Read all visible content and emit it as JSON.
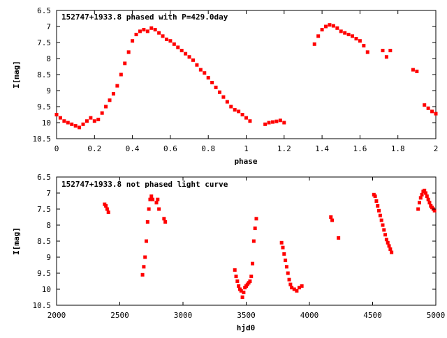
{
  "colors": {
    "series": "#ff0000",
    "axis": "#000000",
    "background": "#ffffff"
  },
  "chart_data": [
    {
      "type": "scatter",
      "title": "152747+1933.8 phased with P=429.0day",
      "xlabel": "phase",
      "ylabel": "I[mag]",
      "xlim": [
        0,
        2
      ],
      "ylim": [
        6.5,
        10.5
      ],
      "y_inverted": true,
      "grid": false,
      "x_ticks": [
        "0",
        "0.2",
        "0.4",
        "0.6",
        "0.8",
        "1",
        "1.2",
        "1.4",
        "1.6",
        "1.8",
        "2"
      ],
      "y_ticks": [
        "6.5",
        "7",
        "7.5",
        "8",
        "8.5",
        "9",
        "9.5",
        "10",
        "10.5"
      ],
      "series": [
        {
          "x": [
            0.0,
            0.02,
            0.04,
            0.06,
            0.08,
            0.1,
            0.12,
            0.14,
            0.16,
            0.18,
            0.2,
            0.22,
            0.24,
            0.26,
            0.28,
            0.3,
            0.32,
            0.34,
            0.36,
            0.38,
            0.4,
            0.42,
            0.44,
            0.46,
            0.48,
            0.5,
            0.52,
            0.54,
            0.56,
            0.58,
            0.6,
            0.62,
            0.64,
            0.66,
            0.68,
            0.7,
            0.72,
            0.74,
            0.76,
            0.78,
            0.8,
            0.82,
            0.84,
            0.86,
            0.88,
            0.9,
            0.92,
            0.94,
            0.96,
            0.98,
            1.0,
            1.02,
            1.1,
            1.12,
            1.14,
            1.16,
            1.18,
            1.2,
            1.36,
            1.38,
            1.4,
            1.42,
            1.44,
            1.46,
            1.48,
            1.5,
            1.52,
            1.54,
            1.56,
            1.58,
            1.6,
            1.62,
            1.64,
            1.72,
            1.74,
            1.76,
            1.88,
            1.9,
            1.94,
            1.96,
            1.98,
            2.0
          ],
          "y": [
            9.75,
            9.85,
            9.95,
            10.0,
            10.05,
            10.1,
            10.15,
            10.05,
            9.95,
            9.85,
            9.95,
            9.9,
            9.7,
            9.5,
            9.3,
            9.1,
            8.85,
            8.5,
            8.15,
            7.8,
            7.45,
            7.25,
            7.15,
            7.1,
            7.15,
            7.05,
            7.1,
            7.2,
            7.3,
            7.4,
            7.45,
            7.55,
            7.65,
            7.75,
            7.85,
            7.95,
            8.05,
            8.2,
            8.35,
            8.45,
            8.6,
            8.75,
            8.9,
            9.05,
            9.2,
            9.35,
            9.5,
            9.6,
            9.65,
            9.75,
            9.85,
            9.95,
            10.05,
            10.0,
            9.98,
            9.96,
            9.93,
            10.0,
            7.55,
            7.3,
            7.1,
            7.0,
            6.95,
            6.98,
            7.05,
            7.15,
            7.2,
            7.25,
            7.3,
            7.38,
            7.45,
            7.6,
            7.8,
            7.75,
            7.95,
            7.75,
            8.35,
            8.4,
            9.45,
            9.55,
            9.65,
            9.72
          ]
        }
      ]
    },
    {
      "type": "scatter",
      "title": "152747+1933.8 not phased light curve",
      "xlabel": "hjd0",
      "ylabel": "I[mag]",
      "xlim": [
        2000,
        5000
      ],
      "ylim": [
        6.5,
        10.5
      ],
      "y_inverted": true,
      "grid": false,
      "x_ticks": [
        "2000",
        "2500",
        "3000",
        "3500",
        "4000",
        "4500",
        "5000"
      ],
      "y_ticks": [
        "6.5",
        "7",
        "7.5",
        "8",
        "8.5",
        "9",
        "9.5",
        "10",
        "10.5"
      ],
      "series": [
        {
          "x": [
            2380,
            2390,
            2400,
            2410,
            2680,
            2690,
            2700,
            2710,
            2720,
            2730,
            2740,
            2750,
            2760,
            2790,
            2800,
            2810,
            2850,
            2860,
            3410,
            3420,
            3430,
            3440,
            3450,
            3460,
            3470,
            3480,
            3490,
            3500,
            3510,
            3520,
            3530,
            3540,
            3550,
            3560,
            3570,
            3580,
            3780,
            3790,
            3800,
            3810,
            3820,
            3830,
            3840,
            3850,
            3860,
            3880,
            3900,
            3920,
            3940,
            4170,
            4180,
            4230,
            4510,
            4520,
            4530,
            4540,
            4550,
            4560,
            4570,
            4580,
            4590,
            4600,
            4610,
            4620,
            4630,
            4640,
            4650,
            4860,
            4870,
            4880,
            4890,
            4900,
            4910,
            4920,
            4930,
            4940,
            4950,
            4960,
            4970,
            4980,
            4990
          ],
          "y": [
            7.35,
            7.4,
            7.5,
            7.6,
            9.55,
            9.3,
            9.0,
            8.5,
            7.9,
            7.5,
            7.2,
            7.1,
            7.2,
            7.3,
            7.2,
            7.5,
            7.8,
            7.9,
            9.4,
            9.6,
            9.75,
            9.9,
            10.0,
            10.05,
            10.25,
            10.1,
            9.95,
            9.9,
            9.85,
            9.8,
            9.75,
            9.6,
            9.2,
            8.5,
            8.1,
            7.8,
            8.55,
            8.7,
            8.9,
            9.1,
            9.3,
            9.5,
            9.7,
            9.85,
            9.95,
            10.0,
            10.05,
            9.95,
            9.9,
            7.75,
            7.85,
            8.4,
            7.05,
            7.1,
            7.25,
            7.4,
            7.55,
            7.7,
            7.85,
            8.0,
            8.15,
            8.3,
            8.45,
            8.55,
            8.65,
            8.75,
            8.85,
            7.5,
            7.3,
            7.15,
            7.05,
            6.95,
            6.92,
            7.0,
            7.1,
            7.2,
            7.3,
            7.4,
            7.45,
            7.5,
            7.55
          ]
        }
      ]
    }
  ]
}
